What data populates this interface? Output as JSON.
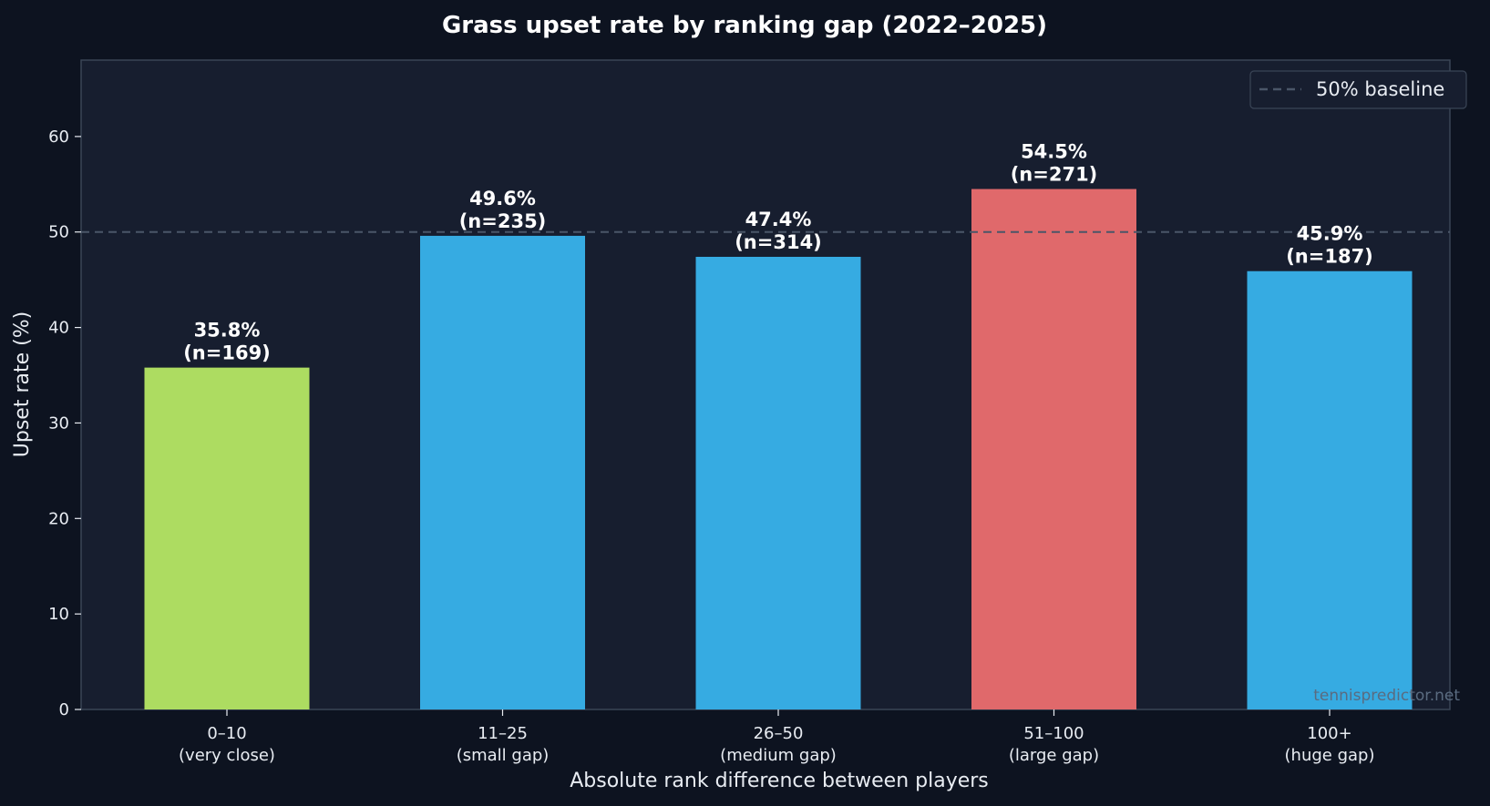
{
  "chart_data": {
    "type": "bar",
    "title": "Grass upset rate by ranking gap (2022–2025)",
    "xlabel": "Absolute rank difference between players",
    "ylabel": "Upset rate (%)",
    "ylim": [
      0,
      68
    ],
    "yticks": [
      0,
      10,
      20,
      30,
      40,
      50,
      60
    ],
    "grid": false,
    "legend_position": "top-right",
    "categories": [
      {
        "label": "0–10",
        "sublabel": "(very close)"
      },
      {
        "label": "11–25",
        "sublabel": "(small gap)"
      },
      {
        "label": "26–50",
        "sublabel": "(medium gap)"
      },
      {
        "label": "51–100",
        "sublabel": "(large gap)"
      },
      {
        "label": "100+",
        "sublabel": "(huge gap)"
      }
    ],
    "values": [
      35.8,
      49.6,
      47.4,
      54.5,
      45.9
    ],
    "counts": [
      169,
      235,
      314,
      271,
      187
    ],
    "value_labels": [
      "35.8%",
      "49.6%",
      "47.4%",
      "54.5%",
      "45.9%"
    ],
    "count_labels": [
      "(n=169)",
      "(n=235)",
      "(n=314)",
      "(n=271)",
      "(n=187)"
    ],
    "bar_colors": [
      "#addc61",
      "#36abe2",
      "#36abe2",
      "#e0696b",
      "#36abe2"
    ],
    "reference_line": {
      "value": 50,
      "label": "50% baseline",
      "color": "#4a5668",
      "style": "dashed"
    },
    "watermark": "tennispredictor.net"
  },
  "colors": {
    "page_background": "#0d1320",
    "plot_background": "#171e2f",
    "plot_border": "#3a4556",
    "text": "#e8ecf2"
  }
}
